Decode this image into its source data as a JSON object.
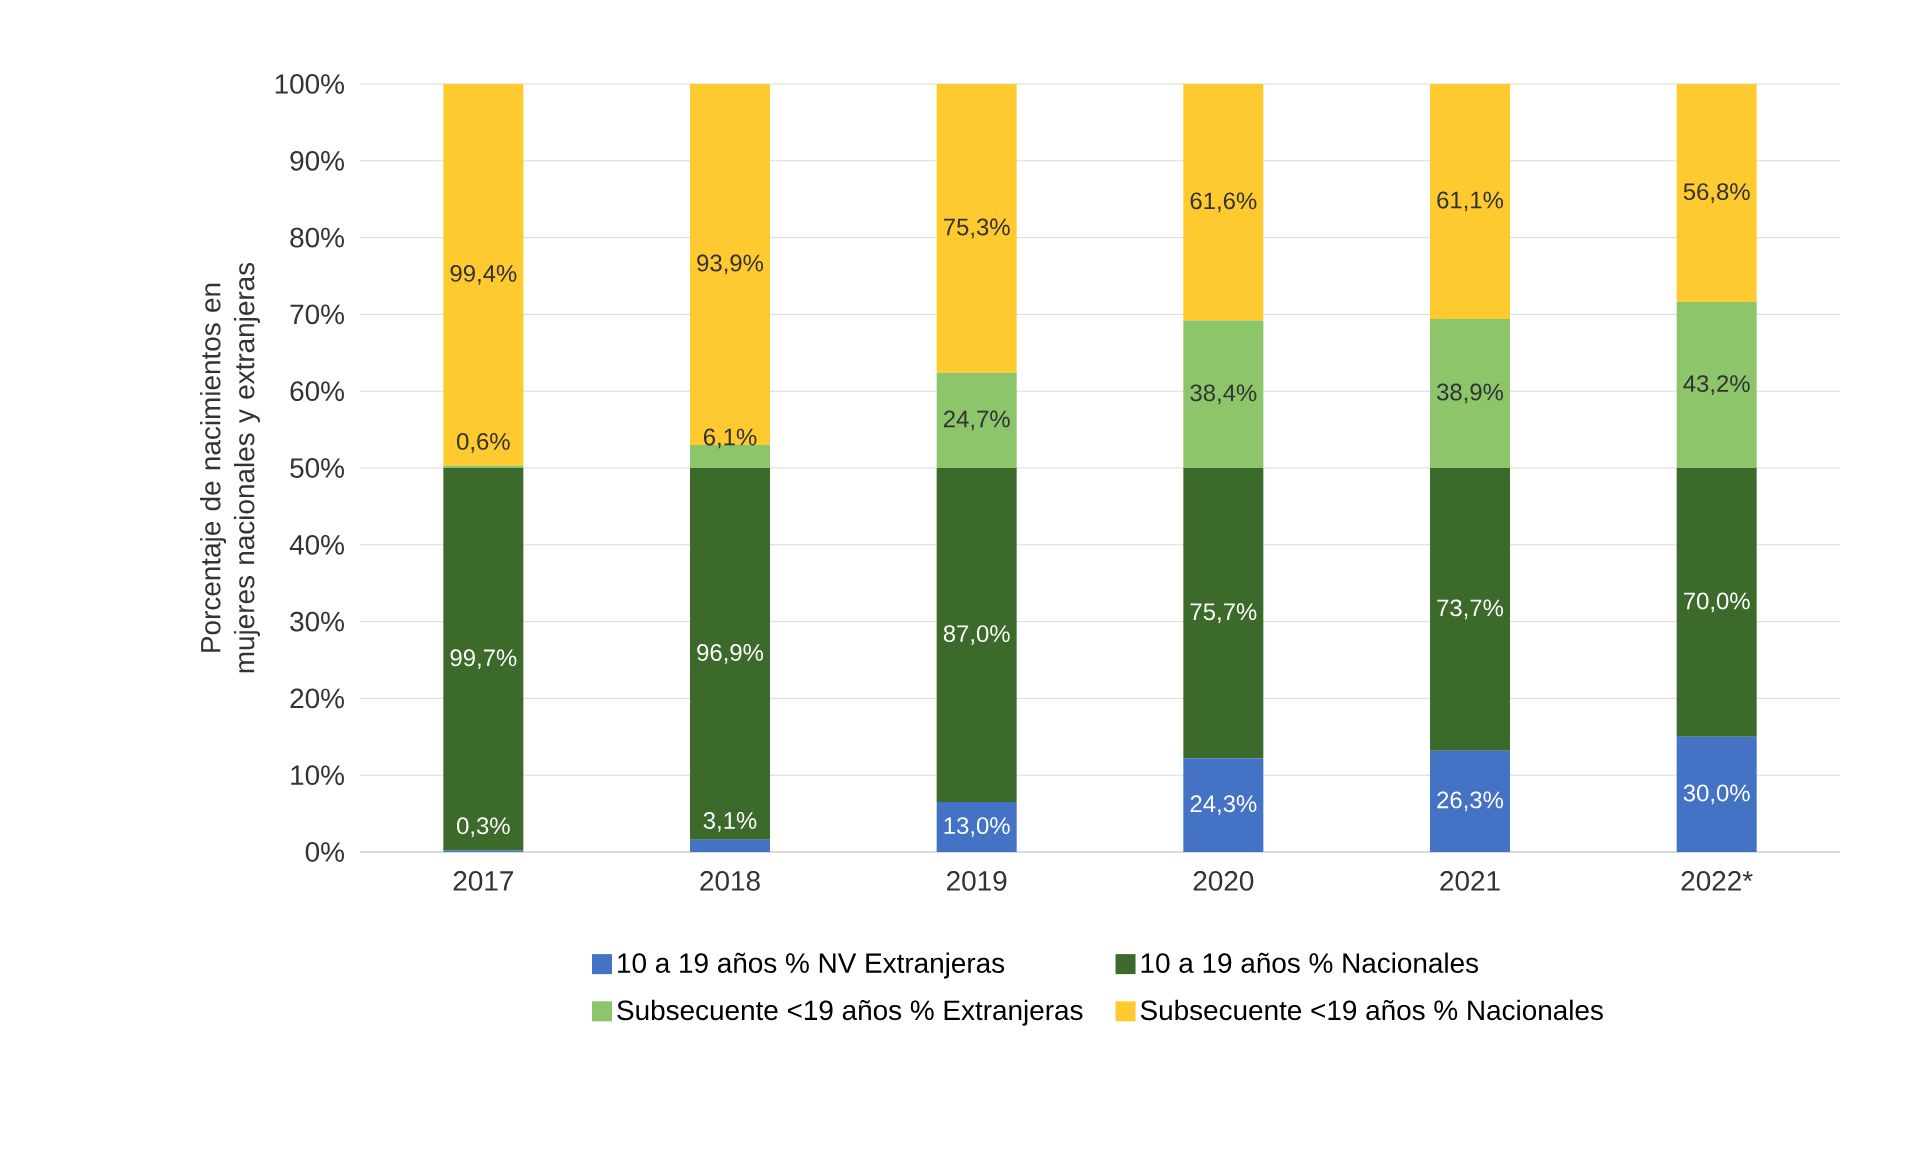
{
  "chart_data": {
    "type": "bar",
    "stacked": true,
    "ylabel": "Porcentaje de nacimientos en mujeres nacionales y extranjeras",
    "categories": [
      "2017",
      "2018",
      "2019",
      "2020",
      "2021",
      "2022*"
    ],
    "series": [
      {
        "name": "10 a 19 años %  NV Extranjeras",
        "color": "#4472c4",
        "values": [
          0.2,
          1.6,
          6.5,
          12.2,
          13.2,
          15
        ]
      },
      {
        "name": "10 a 19 años % Nacionales",
        "color": "#3b6a2b",
        "values": [
          49.8,
          48.4,
          43.5,
          37.8,
          36.8,
          35
        ]
      },
      {
        "name": "Subsecuente <19 años % Extranjeras",
        "color": "#8dc56b",
        "values": [
          0.3,
          3.0,
          12.4,
          19.2,
          19.4,
          21.6
        ]
      },
      {
        "name": "Subsecuente <19 años % Nacionales",
        "color": "#ffca30",
        "values": [
          49.7,
          47.0,
          37.6,
          30.8,
          30.6,
          28.4
        ]
      }
    ],
    "annotations": [
      "0,3%",
      "99,7%",
      "0,6%",
      "99,4%",
      "3,1%",
      "96,9%",
      "6,1%",
      "93,9%",
      "13,0%",
      "87,0%",
      "24,7%",
      "75,3%",
      "24,3%",
      "75,7%",
      "38,4%",
      "61,6%",
      "26,3%",
      "73,7%",
      "38,9%",
      "61,1%",
      "30,0%",
      "70,0%",
      "43,2%",
      "56,8%"
    ],
    "ylim": [
      0,
      100
    ],
    "yticks": [
      {
        "value": 0,
        "label": "0%"
      },
      {
        "value": 10,
        "label": "10%"
      },
      {
        "value": 20,
        "label": "20%"
      },
      {
        "value": 30,
        "label": "30%"
      },
      {
        "value": 40,
        "label": "40%"
      },
      {
        "value": 50,
        "label": "50%"
      },
      {
        "value": 60,
        "label": "60%"
      },
      {
        "value": 70,
        "label": "70%"
      },
      {
        "value": 80,
        "label": "80%"
      },
      {
        "value": 90,
        "label": "90%"
      },
      {
        "value": 100,
        "label": "100%"
      }
    ],
    "grid": "y",
    "legend": "bottom"
  }
}
